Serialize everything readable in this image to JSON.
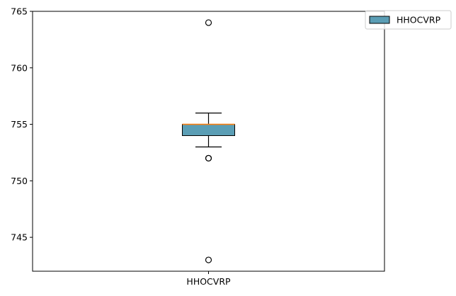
{
  "chart_data": {
    "type": "box",
    "title": "",
    "xlabel": "",
    "ylabel": "",
    "ylim": [
      742,
      765
    ],
    "yticks": [
      745,
      750,
      755,
      760,
      765
    ],
    "categories": [
      "HHOCVRP"
    ],
    "series": [
      {
        "name": "HHOCVRP",
        "whisker_low": 753,
        "q1": 754,
        "median": 755,
        "q3": 755,
        "whisker_high": 756,
        "outliers": [
          764,
          752,
          752,
          743
        ]
      }
    ],
    "grid": false,
    "legend": "top-right"
  },
  "colors": {
    "box_fill": "#5b9eb5",
    "median_line": "#ff7f0e",
    "edge": "#000000"
  }
}
